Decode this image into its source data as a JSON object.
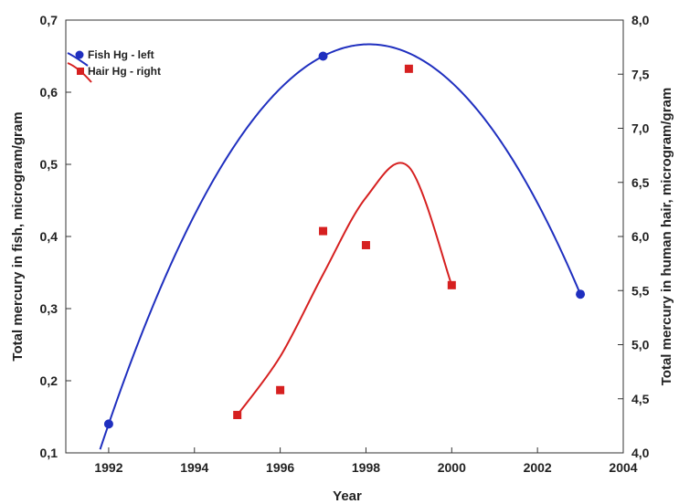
{
  "chart_data": {
    "type": "scatter",
    "title": "",
    "xlabel": "Year",
    "ylabel_left": "Total mercury in fish,  microgram/gram",
    "ylabel_right": "Total mercury in human hair, microgram/gram",
    "xlim": [
      1991,
      2004
    ],
    "ylim_left": [
      0.1,
      0.7
    ],
    "ylim_right": [
      4.0,
      8.0
    ],
    "x_ticks": [
      1992,
      1994,
      1996,
      1998,
      2000,
      2002,
      2004
    ],
    "y_ticks_left": [
      "0,1",
      "0,2",
      "0,3",
      "0,4",
      "0,5",
      "0,6",
      "0,7"
    ],
    "y_ticks_right": [
      "4,0",
      "4,5",
      "5,0",
      "5,5",
      "6,0",
      "6,5",
      "7,0",
      "7,5",
      "8,0"
    ],
    "grid": false,
    "legend_position": "top-left",
    "series": [
      {
        "name": "Fish Hg - left",
        "axis": "left",
        "color": "#1f2fbf",
        "marker": "circle",
        "points": [
          [
            1992,
            0.14
          ],
          [
            1997,
            0.65
          ],
          [
            2003,
            0.32
          ]
        ],
        "fit": "smooth-curve"
      },
      {
        "name": "Hair Hg - right",
        "axis": "right",
        "color": "#d62020",
        "marker": "square",
        "points": [
          [
            1995,
            4.35
          ],
          [
            1996,
            4.58
          ],
          [
            1997,
            6.05
          ],
          [
            1998,
            5.92
          ],
          [
            1999,
            7.55
          ],
          [
            2000,
            5.55
          ]
        ],
        "fit": "smooth-curve"
      }
    ]
  }
}
